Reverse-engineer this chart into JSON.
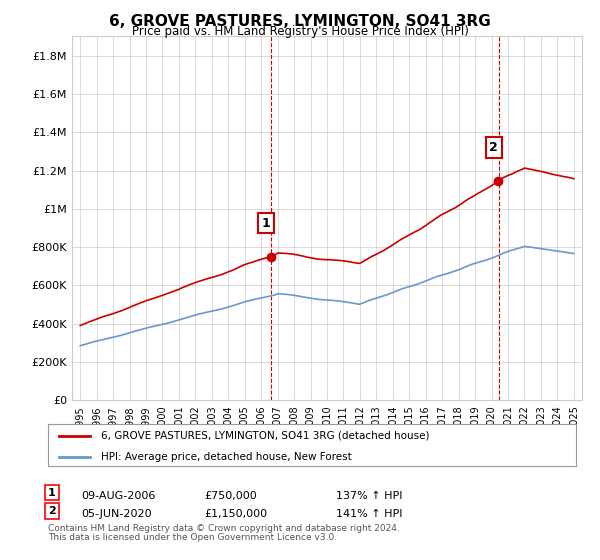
{
  "title": "6, GROVE PASTURES, LYMINGTON, SO41 3RG",
  "subtitle": "Price paid vs. HM Land Registry's House Price Index (HPI)",
  "legend_line1": "6, GROVE PASTURES, LYMINGTON, SO41 3RG (detached house)",
  "legend_line2": "HPI: Average price, detached house, New Forest",
  "annotation1_label": "1",
  "annotation1_date": "09-AUG-2006",
  "annotation1_price": 750000,
  "annotation1_hpi": "137% ↑ HPI",
  "annotation2_label": "2",
  "annotation2_date": "05-JUN-2020",
  "annotation2_price": 1150000,
  "annotation2_hpi": "141% ↑ HPI",
  "footer1": "Contains HM Land Registry data © Crown copyright and database right 2024.",
  "footer2": "This data is licensed under the Open Government Licence v3.0.",
  "sale1_year": 2006.6,
  "sale2_year": 2020.43,
  "red_line_color": "#cc0000",
  "blue_line_color": "#6699cc",
  "background_color": "#ffffff",
  "grid_color": "#cccccc",
  "ylim_max": 1900000,
  "ylim_min": 0
}
